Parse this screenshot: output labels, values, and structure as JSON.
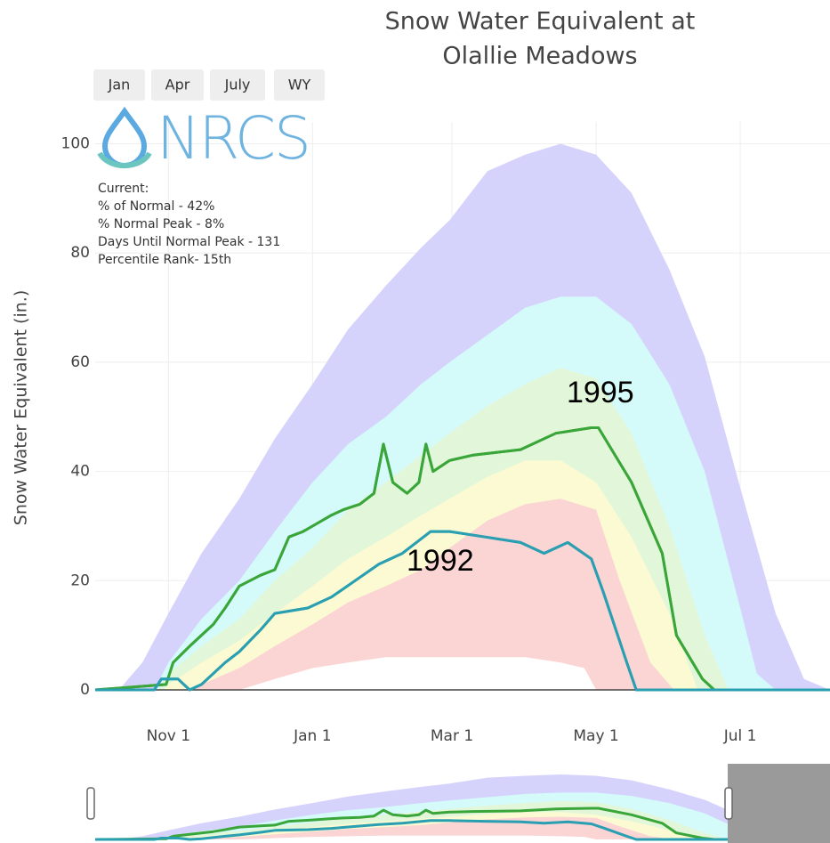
{
  "chart_data": {
    "type": "area",
    "title": [
      "Snow Water Equivalent at",
      "Olallie Meadows"
    ],
    "y_label": "Snow Water Equivalent (in.)",
    "buttons": [
      "Jan",
      "Apr",
      "July",
      "WY"
    ],
    "logo_text": "NRCS",
    "annotations": [
      "Current:",
      "% of Normal - 42%",
      "% Normal Peak - 8%",
      "Days Until Normal Peak - 131",
      "Percentile Rank- 15th"
    ],
    "xlim": [
      0,
      311
    ],
    "xticks": [
      {
        "value": 31,
        "label": "Nov  1"
      },
      {
        "value": 92,
        "label": "Jan  1"
      },
      {
        "value": 151,
        "label": "Mar  1"
      },
      {
        "value": 212,
        "label": "May  1"
      },
      {
        "value": 273,
        "label": "Jul  1"
      }
    ],
    "ylim": [
      0,
      104
    ],
    "yticks": [
      0,
      20,
      40,
      60,
      80,
      100
    ],
    "grid": true,
    "series": [
      {
        "mode": "area",
        "color": "#d5d3fb",
        "x": [
          0,
          10,
          20,
          31,
          45,
          61,
          76,
          92,
          107,
          123,
          138,
          150,
          166,
          182,
          197,
          212,
          227,
          243,
          258,
          273,
          288,
          300,
          311
        ],
        "values": [
          0,
          0,
          5,
          14,
          25,
          35,
          46,
          56,
          66,
          74,
          81,
          86,
          95,
          98,
          100,
          98,
          91,
          77,
          61,
          37,
          14,
          2,
          0
        ]
      },
      {
        "mode": "area",
        "color": "#d5fafa",
        "x": [
          25,
          31,
          45,
          61,
          76,
          92,
          107,
          123,
          138,
          150,
          166,
          182,
          197,
          212,
          227,
          243,
          258,
          273,
          280,
          288
        ],
        "values": [
          0,
          5,
          13,
          20,
          29,
          38,
          45,
          50,
          56,
          60,
          65,
          70,
          72,
          72,
          67,
          56,
          40,
          15,
          3,
          0
        ]
      },
      {
        "mode": "area",
        "color": "#e2f7da",
        "x": [
          27,
          31,
          45,
          61,
          76,
          92,
          107,
          123,
          138,
          150,
          166,
          182,
          197,
          212,
          227,
          243,
          258,
          268
        ],
        "values": [
          0,
          3,
          8,
          13,
          20,
          26,
          33,
          38,
          43,
          47,
          52,
          56,
          59,
          57,
          47,
          30,
          10,
          0
        ]
      },
      {
        "mode": "area",
        "color": "#fbfad2",
        "x": [
          29,
          31,
          45,
          61,
          76,
          92,
          107,
          123,
          138,
          150,
          166,
          182,
          197,
          212,
          227,
          243,
          255
        ],
        "values": [
          0,
          1,
          5,
          9,
          14,
          19,
          24,
          28,
          32,
          35,
          39,
          42,
          42,
          38,
          28,
          14,
          0
        ]
      },
      {
        "mode": "area",
        "color": "#fbd4d4",
        "x": [
          38,
          45,
          61,
          76,
          92,
          107,
          123,
          138,
          150,
          166,
          182,
          197,
          212,
          222,
          235,
          245
        ],
        "values": [
          0,
          1,
          4,
          8,
          12,
          16,
          19,
          22,
          26,
          31,
          34,
          35,
          33,
          20,
          5,
          0
        ]
      },
      {
        "mode": "area",
        "color": "#ffffff",
        "x": [
          61,
          76,
          92,
          107,
          123,
          150,
          182,
          197,
          207,
          212
        ],
        "values": [
          0,
          2,
          4,
          5,
          6,
          6,
          6,
          5,
          4,
          0
        ]
      },
      {
        "mode": "line",
        "name": "1995",
        "color": "#3aa63a",
        "x": [
          0,
          30,
          33,
          40,
          50,
          55,
          61,
          70,
          76,
          82,
          88,
          92,
          100,
          105,
          112,
          118,
          122,
          126,
          132,
          137,
          140,
          143,
          150,
          160,
          180,
          195,
          210,
          213,
          227,
          240,
          246,
          257,
          262,
          311
        ],
        "values": [
          0,
          1,
          5,
          8,
          12,
          15,
          19,
          21,
          22,
          28,
          29,
          30,
          32,
          33,
          34,
          36,
          45,
          38,
          36,
          38,
          45,
          40,
          42,
          43,
          44,
          47,
          48,
          48,
          38,
          25,
          10,
          2,
          0,
          0
        ]
      },
      {
        "mode": "line",
        "name": "1992",
        "color": "#2a9fb2",
        "x": [
          0,
          25,
          28,
          35,
          40,
          45,
          55,
          61,
          70,
          76,
          90,
          100,
          110,
          120,
          130,
          142,
          150,
          165,
          180,
          190,
          200,
          210,
          215,
          225,
          229,
          311
        ],
        "values": [
          0,
          0,
          2,
          2,
          0,
          1,
          5,
          7,
          11,
          14,
          15,
          17,
          20,
          23,
          25,
          29,
          29,
          28,
          27,
          25,
          27,
          24,
          18,
          5,
          0,
          0
        ]
      }
    ]
  }
}
